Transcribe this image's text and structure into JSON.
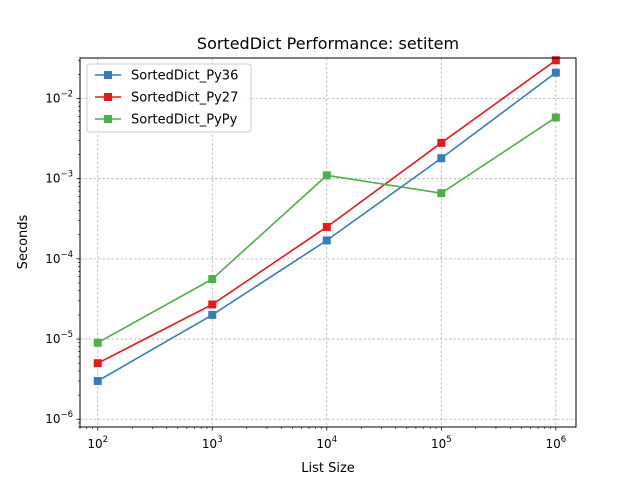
{
  "chart_data": {
    "type": "line",
    "title": "SortedDict Performance: setitem",
    "xlabel": "List Size",
    "ylabel": "Seconds",
    "x_scale": "log",
    "y_scale": "log",
    "x": [
      100,
      1000,
      10000,
      100000,
      1000000
    ],
    "xlim": [
      70,
      1500000
    ],
    "ylim": [
      8e-07,
      0.032
    ],
    "x_ticks": [
      {
        "value": 100,
        "base": "10",
        "exp": "2"
      },
      {
        "value": 1000,
        "base": "10",
        "exp": "3"
      },
      {
        "value": 10000,
        "base": "10",
        "exp": "4"
      },
      {
        "value": 100000,
        "base": "10",
        "exp": "5"
      },
      {
        "value": 1000000,
        "base": "10",
        "exp": "6"
      }
    ],
    "y_ticks": [
      {
        "value": 1e-06,
        "base": "10",
        "exp": "−6"
      },
      {
        "value": 1e-05,
        "base": "10",
        "exp": "−5"
      },
      {
        "value": 0.0001,
        "base": "10",
        "exp": "−4"
      },
      {
        "value": 0.001,
        "base": "10",
        "exp": "−3"
      },
      {
        "value": 0.01,
        "base": "10",
        "exp": "−2"
      }
    ],
    "grid": true,
    "legend_position": "top-left",
    "series": [
      {
        "name": "SortedDict_Py36",
        "color": "#377eb8",
        "values": [
          3e-06,
          2e-05,
          0.00017,
          0.0018,
          0.021
        ]
      },
      {
        "name": "SortedDict_Py27",
        "color": "#e41a1c",
        "values": [
          5e-06,
          2.7e-05,
          0.00025,
          0.0028,
          0.03
        ]
      },
      {
        "name": "SortedDict_PyPy",
        "color": "#4daf4a",
        "values": [
          9e-06,
          5.6e-05,
          0.0011,
          0.00066,
          0.0058
        ]
      }
    ]
  }
}
